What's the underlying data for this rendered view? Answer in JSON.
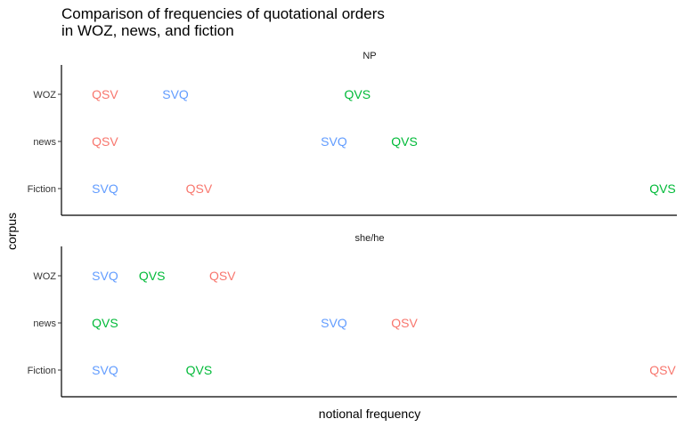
{
  "chart_data": {
    "type": "scatter",
    "title_lines": [
      "Comparison of frequencies of quotational orders",
      "in WOZ, news, and fiction"
    ],
    "xlabel": "notional frequency",
    "ylabel": "corpus",
    "categories": [
      "WOZ",
      "news",
      "Fiction"
    ],
    "xlim": [
      0,
      1
    ],
    "grid": false,
    "legend": "none",
    "series_colors": {
      "QSV": "#F8766D",
      "SVQ": "#619CFF",
      "QVS": "#00BA38"
    },
    "panels": [
      {
        "name": "NP",
        "points": [
          {
            "corpus": "WOZ",
            "order": "QSV",
            "x": 0.05
          },
          {
            "corpus": "WOZ",
            "order": "SVQ",
            "x": 0.17
          },
          {
            "corpus": "WOZ",
            "order": "QVS",
            "x": 0.48
          },
          {
            "corpus": "news",
            "order": "QSV",
            "x": 0.05
          },
          {
            "corpus": "news",
            "order": "SVQ",
            "x": 0.44
          },
          {
            "corpus": "news",
            "order": "QVS",
            "x": 0.56
          },
          {
            "corpus": "Fiction",
            "order": "SVQ",
            "x": 0.05
          },
          {
            "corpus": "Fiction",
            "order": "QSV",
            "x": 0.21
          },
          {
            "corpus": "Fiction",
            "order": "QVS",
            "x": 1.0
          }
        ]
      },
      {
        "name": "she/he",
        "points": [
          {
            "corpus": "WOZ",
            "order": "SVQ",
            "x": 0.05
          },
          {
            "corpus": "WOZ",
            "order": "QVS",
            "x": 0.13
          },
          {
            "corpus": "WOZ",
            "order": "QSV",
            "x": 0.25
          },
          {
            "corpus": "news",
            "order": "QVS",
            "x": 0.05
          },
          {
            "corpus": "news",
            "order": "SVQ",
            "x": 0.44
          },
          {
            "corpus": "news",
            "order": "QSV",
            "x": 0.56
          },
          {
            "corpus": "Fiction",
            "order": "SVQ",
            "x": 0.05
          },
          {
            "corpus": "Fiction",
            "order": "QVS",
            "x": 0.21
          },
          {
            "corpus": "Fiction",
            "order": "QSV",
            "x": 1.0
          }
        ]
      }
    ]
  }
}
